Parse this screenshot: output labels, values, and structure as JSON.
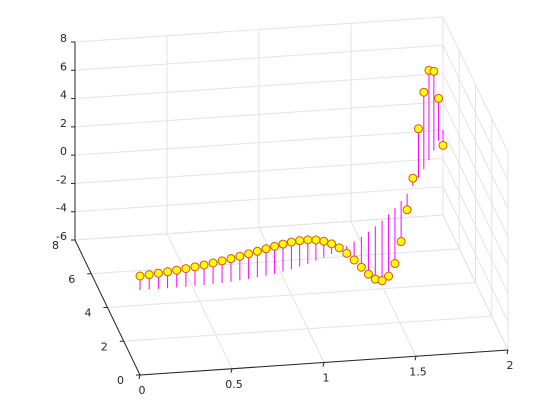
{
  "chart_data": {
    "type": "stem3",
    "x": [
      0,
      0.05,
      0.1,
      0.15,
      0.2,
      0.25,
      0.3,
      0.35,
      0.4,
      0.45,
      0.5,
      0.55,
      0.6,
      0.65,
      0.7,
      0.75,
      0.8,
      0.85,
      0.9,
      0.95,
      1,
      1.05,
      1.1,
      1.15,
      1.2,
      1.25,
      1.3,
      1.35,
      1.4,
      1.45,
      1.5,
      1.55,
      1.6,
      1.65,
      1.7,
      1.75,
      1.8,
      1.85,
      1.9,
      1.95,
      2
    ],
    "y": [
      0,
      0.000125,
      0.001,
      0.003375,
      0.008,
      0.015625,
      0.027,
      0.042875,
      0.064,
      0.091125,
      0.125,
      0.166375,
      0.216,
      0.274625,
      0.343,
      0.421875,
      0.512,
      0.614125,
      0.729,
      0.857375,
      1,
      1.157625,
      1.331,
      1.520875,
      1.728,
      1.953125,
      2.197,
      2.460375,
      2.744,
      3.048625,
      3.375,
      3.723875,
      4.096,
      4.492125,
      4.913,
      5.359375,
      5.832,
      6.331625,
      6.859,
      7.414875,
      8
    ],
    "z": [
      1,
      1.051,
      1.105,
      1.162,
      1.221,
      1.284,
      1.349,
      1.418,
      1.489,
      1.562,
      1.636,
      1.709,
      1.78,
      1.844,
      1.896,
      1.931,
      1.94,
      1.912,
      1.834,
      1.692,
      1.469,
      1.144,
      0.713,
      0.158,
      -0.52,
      -1.302,
      -2.151,
      -2.999,
      -3.736,
      -4.247,
      -4.364,
      -3.931,
      -2.865,
      -1.138,
      0.55,
      3.468,
      5.444,
      6.352,
      5.608,
      2.985,
      -1.075
    ],
    "stem_color": "#ff00ff",
    "marker_face": "#ffff00",
    "marker_edge": "#d95319",
    "xlim": [
      0,
      2
    ],
    "ylim": [
      0,
      8
    ],
    "zlim": [
      -6,
      8
    ],
    "xticks": [
      0,
      0.5,
      1,
      1.5,
      2
    ],
    "yticks": [
      0,
      2,
      4,
      6,
      8
    ],
    "zticks": [
      -6,
      -4,
      -2,
      0,
      2,
      4,
      6,
      8
    ],
    "grid": true
  }
}
